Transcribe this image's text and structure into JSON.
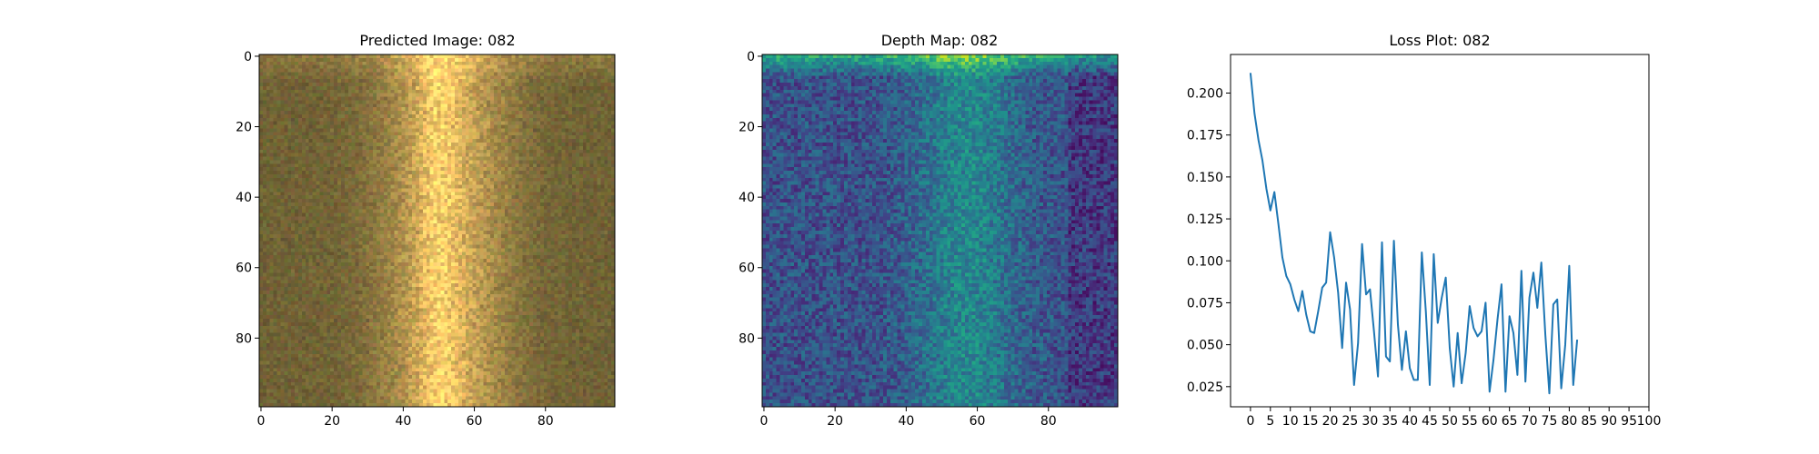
{
  "chart_data": [
    {
      "type": "heatmap",
      "title": "Predicted Image: 082",
      "colormap": "rgb",
      "x_ticks": [
        0,
        20,
        40,
        60,
        80
      ],
      "y_ticks": [
        0,
        20,
        40,
        60,
        80
      ],
      "xlim": [
        0,
        99
      ],
      "ylim": [
        99,
        0
      ],
      "grid": false
    },
    {
      "type": "heatmap",
      "title": "Depth Map: 082",
      "colormap": "viridis",
      "x_ticks": [
        0,
        20,
        40,
        60,
        80
      ],
      "y_ticks": [
        0,
        20,
        40,
        60,
        80
      ],
      "xlim": [
        0,
        99
      ],
      "ylim": [
        99,
        0
      ],
      "grid": false
    },
    {
      "type": "line",
      "title": "Loss Plot: 082",
      "x_ticks": [
        0,
        5,
        10,
        15,
        20,
        25,
        30,
        35,
        40,
        45,
        50,
        55,
        60,
        65,
        70,
        75,
        80,
        85,
        90,
        95,
        100
      ],
      "y_ticks": [
        "0.025",
        "0.050",
        "0.075",
        "0.100",
        "0.125",
        "0.150",
        "0.175",
        "0.200"
      ],
      "xlim": [
        -5,
        100
      ],
      "ylim": [
        0.013,
        0.223
      ],
      "grid": false,
      "color": "#1f77b4",
      "series": [
        {
          "x": [
            0,
            1,
            2,
            3,
            4,
            5,
            6,
            7,
            8,
            9,
            10,
            11,
            12,
            13,
            14,
            15,
            16,
            17,
            18,
            19,
            20,
            21,
            22,
            23,
            24,
            25,
            26,
            27,
            28,
            29,
            30,
            31,
            32,
            33,
            34,
            35,
            36,
            37,
            38,
            39,
            40,
            41,
            42,
            43,
            44,
            45,
            46,
            47,
            48,
            49,
            50,
            51,
            52,
            53,
            54,
            55,
            56,
            57,
            58,
            59,
            60,
            61,
            62,
            63,
            64,
            65,
            66,
            67,
            68,
            69,
            70,
            71,
            72,
            73,
            74,
            75,
            76,
            77,
            78,
            79,
            80,
            81,
            82
          ],
          "y": [
            0.212,
            0.188,
            0.172,
            0.16,
            0.143,
            0.13,
            0.141,
            0.122,
            0.102,
            0.091,
            0.086,
            0.077,
            0.07,
            0.082,
            0.068,
            0.058,
            0.057,
            0.07,
            0.084,
            0.087,
            0.117,
            0.102,
            0.081,
            0.048,
            0.087,
            0.071,
            0.026,
            0.051,
            0.11,
            0.08,
            0.083,
            0.058,
            0.031,
            0.111,
            0.043,
            0.04,
            0.112,
            0.062,
            0.035,
            0.058,
            0.036,
            0.029,
            0.029,
            0.105,
            0.07,
            0.026,
            0.104,
            0.063,
            0.078,
            0.09,
            0.048,
            0.025,
            0.057,
            0.027,
            0.045,
            0.073,
            0.06,
            0.055,
            0.058,
            0.075,
            0.022,
            0.041,
            0.065,
            0.086,
            0.022,
            0.067,
            0.057,
            0.032,
            0.094,
            0.028,
            0.078,
            0.093,
            0.072,
            0.099,
            0.056,
            0.021,
            0.074,
            0.077,
            0.024,
            0.05,
            0.097,
            0.026,
            0.053
          ]
        }
      ]
    }
  ]
}
